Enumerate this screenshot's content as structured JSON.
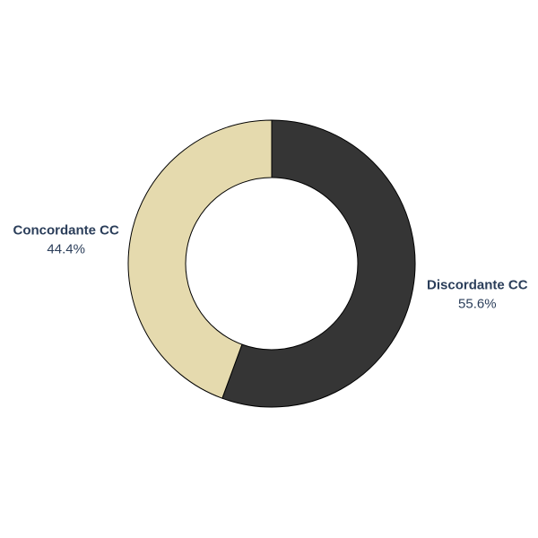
{
  "chart_data": {
    "type": "pie",
    "variant": "donut",
    "labels": [
      "Discordante CC",
      "Concordante CC"
    ],
    "values": [
      55.6,
      44.4
    ],
    "value_labels": [
      "55.6%",
      "44.4%"
    ],
    "colors": [
      "#353535",
      "#e5daae"
    ],
    "outline_color": "#000000",
    "label_color": "#2b3e5a",
    "start_angle_deg": 0,
    "direction": "clockwise",
    "legend": "none"
  }
}
